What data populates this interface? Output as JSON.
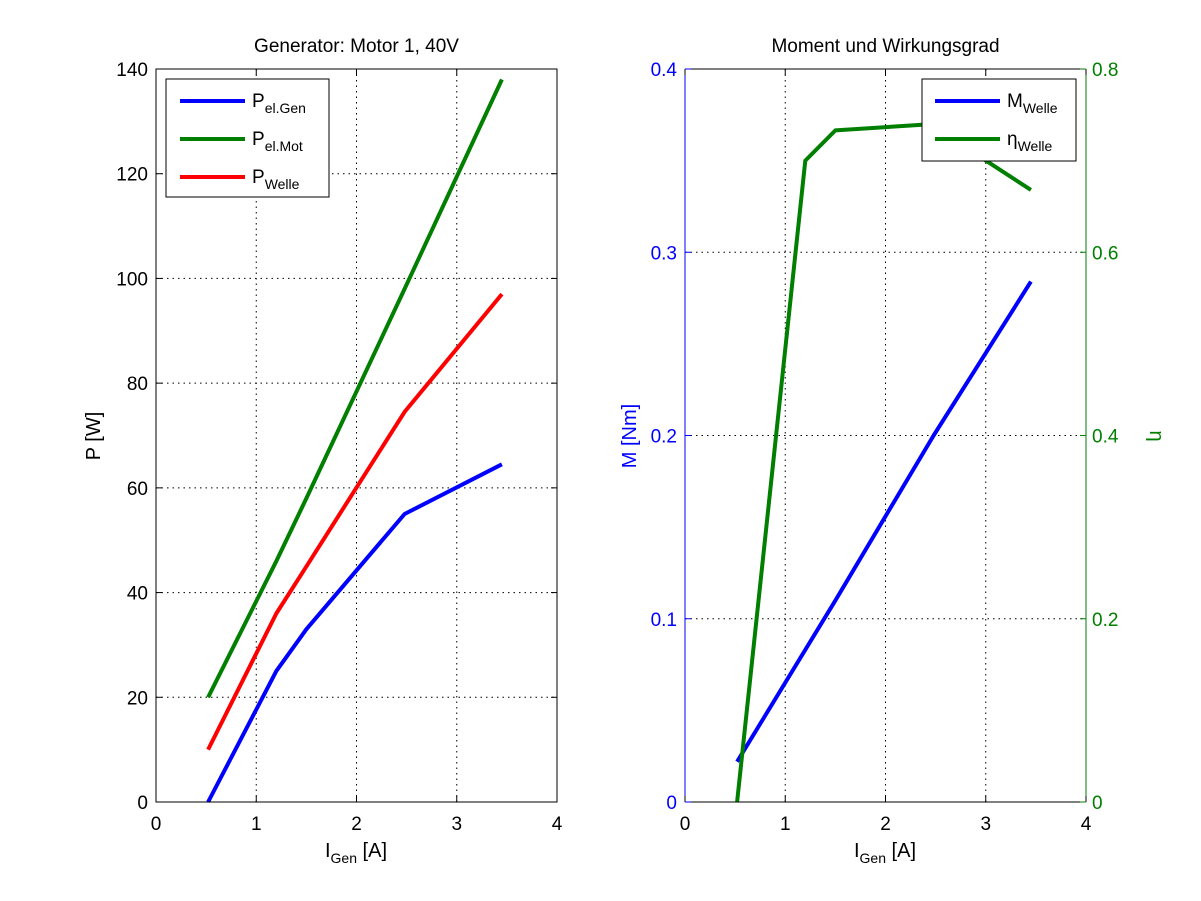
{
  "colors": {
    "blue": "#0000ff",
    "green": "#007f00",
    "red": "#ff0000",
    "axis": "#000000"
  },
  "chart_data": [
    {
      "type": "line",
      "title": "Generator: Motor 1, 40V",
      "xlabel_main": "I",
      "xlabel_sub": "Gen",
      "xlabel_unit": " [A]",
      "ylabel": "P [W]",
      "xlim": [
        0,
        4
      ],
      "ylim": [
        0,
        140
      ],
      "xticks": [
        "0",
        "1",
        "2",
        "3",
        "4"
      ],
      "yticks": [
        "0",
        "20",
        "40",
        "60",
        "80",
        "100",
        "120",
        "140"
      ],
      "grid": true,
      "legend_position": "top-left",
      "series": [
        {
          "name_main": "P",
          "name_sub": "el.Gen",
          "color": "#0000ff",
          "x": [
            0.52,
            1.2,
            1.5,
            2.48,
            3.45
          ],
          "y": [
            0,
            25,
            33,
            55,
            64.5
          ]
        },
        {
          "name_main": "P",
          "name_sub": "el.Mot",
          "color": "#007f00",
          "x": [
            0.52,
            1.2,
            1.5,
            2.48,
            3.45
          ],
          "y": [
            20,
            46,
            58,
            98,
            138
          ]
        },
        {
          "name_main": "P",
          "name_sub": "Welle",
          "color": "#ff0000",
          "x": [
            0.52,
            1.2,
            1.5,
            2.48,
            3.45
          ],
          "y": [
            10,
            36,
            45,
            74.5,
            97
          ]
        }
      ]
    },
    {
      "type": "line",
      "title": "Moment und Wirkungsgrad",
      "xlabel_main": "I",
      "xlabel_sub": "Gen",
      "xlabel_unit": " [A]",
      "ylabel_left": "M [Nm]",
      "ylabel_right": "η",
      "xlim": [
        0,
        4
      ],
      "ylim_left": [
        0,
        0.4
      ],
      "ylim_right": [
        0,
        0.8
      ],
      "xticks": [
        "0",
        "1",
        "2",
        "3",
        "4"
      ],
      "yticks_left": [
        "0",
        "0.1",
        "0.2",
        "0.3",
        "0.4"
      ],
      "yticks_right": [
        "0",
        "0.2",
        "0.4",
        "0.6",
        "0.8"
      ],
      "grid": true,
      "legend_position": "top-right",
      "series": [
        {
          "name_main": "M",
          "name_sub": "Welle",
          "color": "#0000ff",
          "axis": "left",
          "x": [
            0.52,
            1.5,
            2.48,
            3.45
          ],
          "y": [
            0.022,
            0.11,
            0.2,
            0.284
          ]
        },
        {
          "name_main": "η",
          "name_sub": "Welle",
          "color": "#007f00",
          "axis": "right",
          "x": [
            0.52,
            1.2,
            1.5,
            2.48,
            3.0,
            3.45
          ],
          "y": [
            0,
            0.7,
            0.733,
            0.74,
            0.7,
            0.668
          ]
        }
      ]
    }
  ]
}
